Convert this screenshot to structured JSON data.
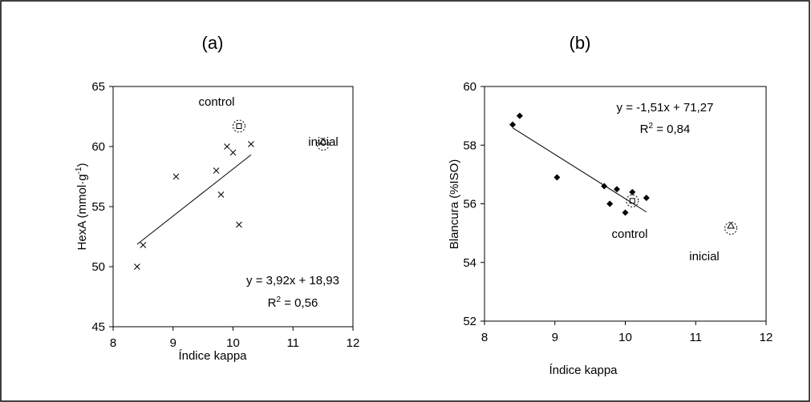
{
  "chart_data": [
    {
      "type": "scatter",
      "title": "(a)",
      "xlabel": "Índice kappa",
      "ylabel_main": "HexA (mmol·g",
      "ylabel_sup": "-1",
      "ylabel_close": ")",
      "xlim": [
        8,
        12
      ],
      "ylim": [
        45,
        65
      ],
      "xticks": [
        8,
        9,
        10,
        11,
        12
      ],
      "yticks": [
        45,
        50,
        55,
        60,
        65
      ],
      "grid": false,
      "points": {
        "marker": "cross",
        "x": [
          8.4,
          8.5,
          9.05,
          9.72,
          9.8,
          9.9,
          10.0,
          10.1,
          10.3
        ],
        "y": [
          50.0,
          51.8,
          57.5,
          58.0,
          56.0,
          60.0,
          59.5,
          53.5,
          60.2
        ]
      },
      "trendline": {
        "x": [
          8.4,
          10.3
        ],
        "y": [
          51.86,
          59.31
        ]
      },
      "control": {
        "x": 10.1,
        "y": 61.7,
        "marker": "square",
        "label": "control"
      },
      "inicial": {
        "x": 11.5,
        "y": 60.4,
        "marker": "triangle",
        "label": "inicial"
      },
      "equation": "y = 3,92x + 18,93",
      "r2_prefix": "R",
      "r2_sup": "2",
      "r2_value": " = 0,56"
    },
    {
      "type": "scatter",
      "title": "(b)",
      "xlabel": "Índice kappa",
      "ylabel": "Blancura (%ISO)",
      "xlim": [
        8,
        12
      ],
      "ylim": [
        52,
        60
      ],
      "xticks": [
        8,
        9,
        10,
        11,
        12
      ],
      "yticks": [
        52,
        54,
        56,
        58,
        60
      ],
      "grid": false,
      "points": {
        "marker": "diamond",
        "x": [
          8.4,
          8.5,
          9.03,
          9.7,
          9.78,
          9.88,
          10.0,
          10.1,
          10.3
        ],
        "y": [
          58.7,
          59.0,
          56.9,
          56.6,
          56.0,
          56.5,
          55.7,
          56.4,
          56.2
        ]
      },
      "trendline": {
        "x": [
          8.4,
          10.3
        ],
        "y": [
          58.59,
          55.72
        ]
      },
      "control": {
        "x": 10.1,
        "y": 56.1,
        "marker": "square",
        "label": "control"
      },
      "inicial": {
        "x": 11.5,
        "y": 55.25,
        "marker": "triangle",
        "label": "inicial"
      },
      "equation": "y = -1,51x + 71,27",
      "r2_prefix": "R",
      "r2_sup": "2",
      "r2_value": " = 0,84"
    }
  ]
}
